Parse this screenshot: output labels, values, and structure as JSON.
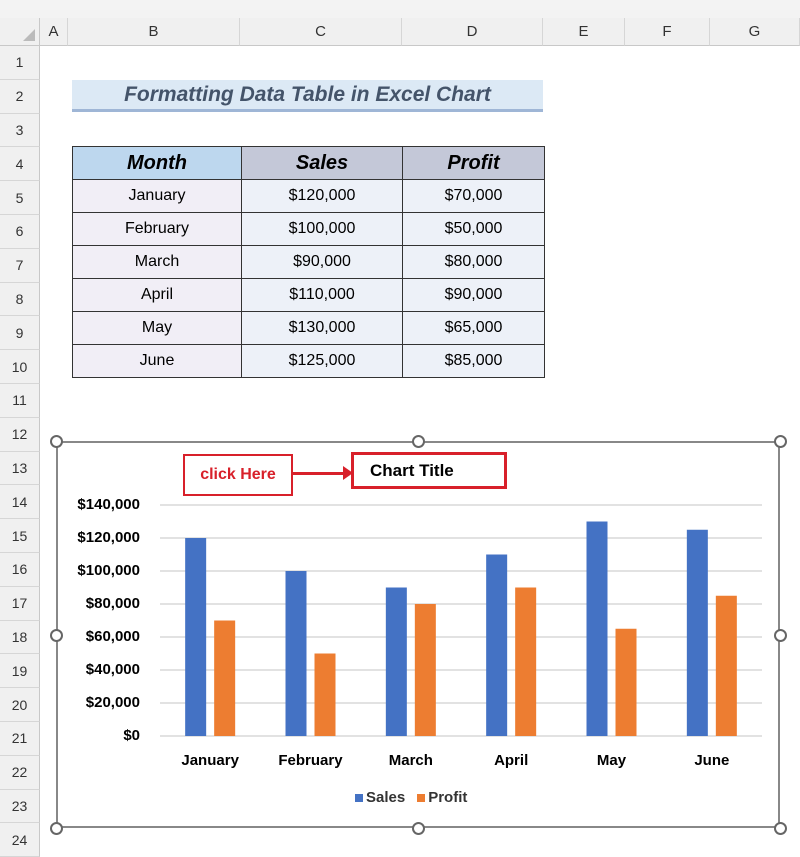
{
  "sheet": {
    "columns": [
      "A",
      "B",
      "C",
      "D",
      "E",
      "F",
      "G"
    ],
    "rows": [
      "1",
      "2",
      "3",
      "4",
      "5",
      "6",
      "7",
      "8",
      "9",
      "10",
      "11",
      "12",
      "13",
      "14",
      "15",
      "16",
      "17",
      "18",
      "19",
      "20",
      "21",
      "22",
      "23",
      "24"
    ],
    "title": "Formatting Data Table in Excel Chart",
    "table": {
      "headers": [
        "Month",
        "Sales",
        "Profit"
      ],
      "rows": [
        [
          "January",
          "$120,000",
          "$70,000"
        ],
        [
          "February",
          "$100,000",
          "$50,000"
        ],
        [
          "March",
          "$90,000",
          "$80,000"
        ],
        [
          "April",
          "$110,000",
          "$90,000"
        ],
        [
          "May",
          "$130,000",
          "$65,000"
        ],
        [
          "June",
          "$125,000",
          "$85,000"
        ]
      ]
    }
  },
  "annotation": {
    "click_label": "click Here"
  },
  "chart_data": {
    "type": "bar",
    "title": "Chart Title",
    "categories": [
      "January",
      "February",
      "March",
      "April",
      "May",
      "June"
    ],
    "series": [
      {
        "name": "Sales",
        "values": [
          120000,
          100000,
          90000,
          110000,
          130000,
          125000
        ],
        "color": "#4472c4"
      },
      {
        "name": "Profit",
        "values": [
          70000,
          50000,
          80000,
          90000,
          65000,
          85000
        ],
        "color": "#ed7d31"
      }
    ],
    "yticks": [
      "$0",
      "$20,000",
      "$40,000",
      "$60,000",
      "$80,000",
      "$100,000",
      "$120,000",
      "$140,000"
    ],
    "ylim": [
      0,
      140000
    ],
    "grid": true,
    "legend": "bottom"
  }
}
